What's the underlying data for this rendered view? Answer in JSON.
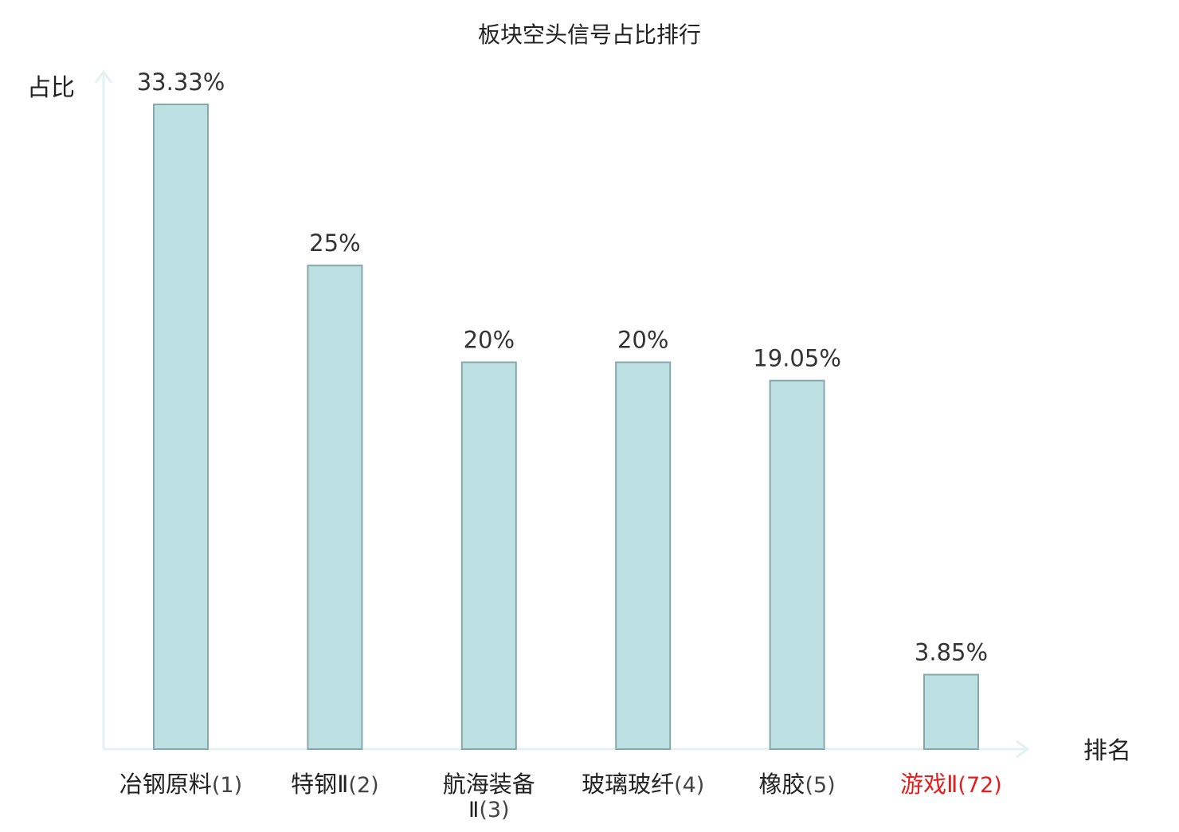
{
  "chart_data": {
    "type": "bar",
    "title": "板块空头信号占比排行",
    "ylabel": "占比",
    "xlabel": "排名",
    "categories": [
      {
        "name": "冶钢原料",
        "rank": "(1)"
      },
      {
        "name": "特钢Ⅱ",
        "rank": "(2)"
      },
      {
        "name": "航海装备Ⅱ",
        "rank": "(3)"
      },
      {
        "name": "玻璃玻纤",
        "rank": "(4)"
      },
      {
        "name": "橡胶",
        "rank": "(5)"
      },
      {
        "name": "游戏Ⅱ",
        "rank": "(72)"
      }
    ],
    "values": [
      33.33,
      25,
      20,
      20,
      19.05,
      3.85
    ],
    "value_labels": [
      "33.33%",
      "25%",
      "20%",
      "20%",
      "19.05%",
      "3.85%"
    ],
    "highlight_index": 5,
    "ylim": [
      0,
      35
    ],
    "grid": false,
    "colors": {
      "bar_fill": "#bde0e2",
      "bar_stroke": "#86a8aa",
      "axis": "#e3f2ef",
      "text": "#333333",
      "label_text": "#222222",
      "highlight": "#e01f1f"
    }
  }
}
